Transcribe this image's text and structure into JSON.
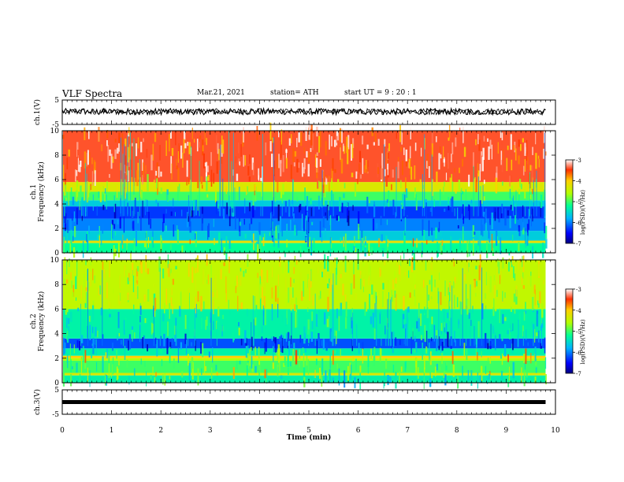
{
  "header": {
    "title": "VLF Spectra",
    "date": "Mar.21, 2021",
    "station": "station= ATH",
    "start": "start  UT =   9 : 20 : 1"
  },
  "chart_data": [
    {
      "type": "line",
      "id": "ch1-waveform",
      "ylabel": "ch.1(V)",
      "ylim": [
        -5,
        5
      ],
      "yticks": [
        "5",
        "-5"
      ],
      "xlim": [
        0,
        10
      ],
      "description_values": "dense noisy voltage trace oscillating roughly between -1 and 1.5 V over 0–9.8 min",
      "series": [
        {
          "x_range": [
            0,
            9.8
          ],
          "amplitude_range": [
            -1,
            1.5
          ]
        }
      ]
    },
    {
      "type": "heatmap",
      "id": "ch1-spectrogram",
      "ylabel": "ch.1\nFrequency (kHz)",
      "ylim": [
        0,
        10
      ],
      "yticks": [
        "0",
        "2",
        "4",
        "6",
        "8",
        "10"
      ],
      "xlim": [
        0,
        10
      ],
      "data_extent_min": 9.8,
      "colorbar": {
        "label": "log(PSD)(V²/Hz)",
        "range": [
          -7,
          -3
        ],
        "ticks": [
          "-3",
          "-4",
          "-5",
          "-6",
          "-7"
        ]
      },
      "bands": [
        {
          "f_range": [
            0,
            0.8
          ],
          "level": -5.2
        },
        {
          "f_range": [
            0.8,
            1.0
          ],
          "level": -4.2
        },
        {
          "f_range": [
            1.0,
            1.8
          ],
          "level": -5.6
        },
        {
          "f_range": [
            1.8,
            2.8
          ],
          "level": -6.0
        },
        {
          "f_range": [
            2.8,
            3.8
          ],
          "level": -6.3
        },
        {
          "f_range": [
            3.8,
            4.3
          ],
          "level": -5.6
        },
        {
          "f_range": [
            4.3,
            5.0
          ],
          "level": -5.0
        },
        {
          "f_range": [
            5.0,
            5.8
          ],
          "level": -4.3
        },
        {
          "f_range": [
            5.8,
            10.0
          ],
          "level": -3.4
        }
      ]
    },
    {
      "type": "heatmap",
      "id": "ch2-spectrogram",
      "ylabel": "ch.2\nFrequency (kHz)",
      "ylim": [
        0,
        10
      ],
      "yticks": [
        "0",
        "2",
        "4",
        "6",
        "8",
        "10"
      ],
      "xlim": [
        0,
        10
      ],
      "data_extent_min": 9.8,
      "colorbar": {
        "label": "log(PSD)(V²/Hz)",
        "range": [
          -7,
          -3
        ],
        "ticks": [
          "-3",
          "-4",
          "-5",
          "-6",
          "-7"
        ]
      },
      "bands": [
        {
          "f_range": [
            0,
            0.6
          ],
          "level": -5.3
        },
        {
          "f_range": [
            0.6,
            0.8
          ],
          "level": -4.3
        },
        {
          "f_range": [
            0.8,
            1.8
          ],
          "level": -5.0
        },
        {
          "f_range": [
            1.8,
            2.0
          ],
          "level": -4.6
        },
        {
          "f_range": [
            2.0,
            2.2
          ],
          "level": -4.0
        },
        {
          "f_range": [
            2.2,
            2.8
          ],
          "level": -5.3
        },
        {
          "f_range": [
            2.8,
            3.6
          ],
          "level": -6.2
        },
        {
          "f_range": [
            3.6,
            6.0
          ],
          "level": -5.3
        },
        {
          "f_range": [
            6.0,
            10.0
          ],
          "level": -4.5
        }
      ]
    },
    {
      "type": "line",
      "id": "ch3-waveform",
      "ylabel": "ch.3(V)",
      "ylim": [
        -5,
        5
      ],
      "yticks": [
        "5",
        "-5"
      ],
      "xlim": [
        0,
        10
      ],
      "series": [
        {
          "x_range": [
            0,
            9.8
          ],
          "level": 0,
          "amplitude_range": [
            -0.4,
            0.4
          ]
        }
      ]
    }
  ],
  "xaxis": {
    "label": "Time (min)",
    "ticks": [
      "0",
      "1",
      "2",
      "3",
      "4",
      "5",
      "6",
      "7",
      "8",
      "9",
      "10"
    ]
  }
}
